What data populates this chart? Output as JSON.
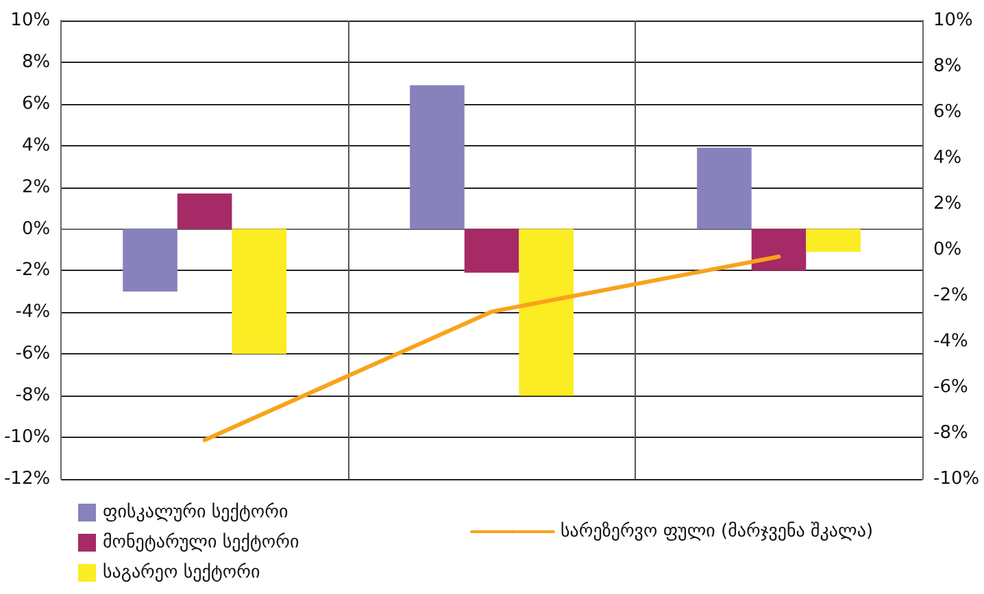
{
  "chart_data": {
    "type": "bar",
    "categories": [
      null,
      null,
      null
    ],
    "series": [
      {
        "name": "ფისკალური სექტორი",
        "color": "#8882bc",
        "values": [
          -3,
          6.9,
          3.9
        ]
      },
      {
        "name": "მონეტარული სექტორი",
        "color": "#a52a65",
        "values": [
          1.7,
          -2.1,
          -2
        ]
      },
      {
        "name": "საგარეო სექტორი",
        "color": "#fbec23",
        "values": [
          -6,
          -8,
          -1.1
        ]
      },
      {
        "name": "სარეზერვო ფული (მარჯვენა შკალა)",
        "type": "line",
        "axis": "y2",
        "color": "#f8a31b",
        "values": [
          -8.3,
          -2.7,
          -0.3
        ]
      }
    ],
    "ylim": [
      -12,
      10
    ],
    "yticks": [
      {
        "value": -12,
        "label": "-12%"
      },
      {
        "value": -10,
        "label": "-10%"
      },
      {
        "value": -8,
        "label": "-8%"
      },
      {
        "value": -6,
        "label": "-6%"
      },
      {
        "value": -4,
        "label": "-4%"
      },
      {
        "value": -2,
        "label": "-2%"
      },
      {
        "value": 0,
        "label": "0%"
      },
      {
        "value": 2,
        "label": "2%"
      },
      {
        "value": 4,
        "label": "4%"
      },
      {
        "value": 6,
        "label": "6%"
      },
      {
        "value": 8,
        "label": "8%"
      },
      {
        "value": 10,
        "label": "10%"
      }
    ],
    "y2lim": [
      -10,
      10
    ],
    "y2ticks": [
      {
        "value": -10,
        "label": "-10%"
      },
      {
        "value": -8,
        "label": "-8%"
      },
      {
        "value": -6,
        "label": "-6%"
      },
      {
        "value": -4,
        "label": "-4%"
      },
      {
        "value": -2,
        "label": "-2%"
      },
      {
        "value": 0,
        "label": "0%"
      },
      {
        "value": 2,
        "label": "2%"
      },
      {
        "value": 4,
        "label": "4%"
      },
      {
        "value": 6,
        "label": "6%"
      },
      {
        "value": 8,
        "label": "8%"
      },
      {
        "value": 10,
        "label": "10%"
      }
    ],
    "grid": true,
    "legend": "bottom",
    "marker": "none"
  }
}
